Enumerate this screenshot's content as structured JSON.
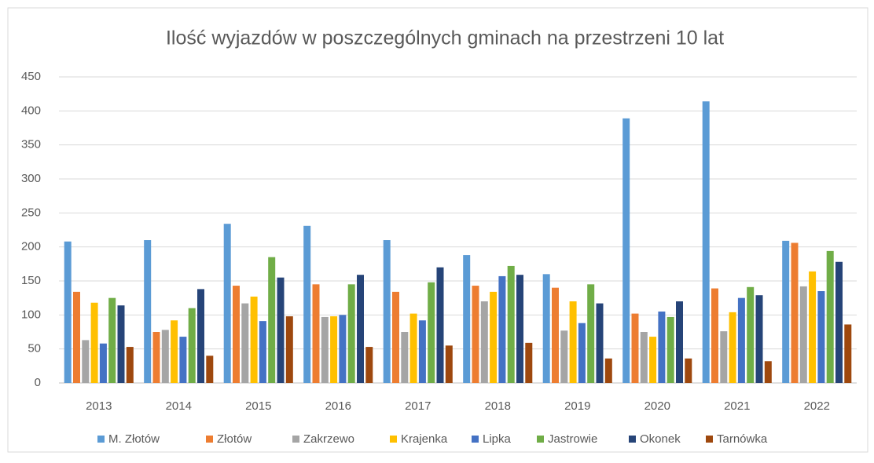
{
  "chart_data": {
    "type": "bar",
    "title": "Ilość wyjazdów w poszczególnych  gminach na przestrzeni 10 lat",
    "categories": [
      "2013",
      "2014",
      "2015",
      "2016",
      "2017",
      "2018",
      "2019",
      "2020",
      "2021",
      "2022"
    ],
    "series": [
      {
        "name": "M. Złotów",
        "color": "#5b9bd5",
        "values": [
          208,
          210,
          234,
          231,
          210,
          188,
          160,
          389,
          414,
          209
        ]
      },
      {
        "name": "Złotów",
        "color": "#ed7d31",
        "values": [
          134,
          75,
          143,
          145,
          134,
          143,
          140,
          102,
          139,
          206
        ]
      },
      {
        "name": "Zakrzewo",
        "color": "#a5a5a5",
        "values": [
          63,
          78,
          117,
          97,
          75,
          120,
          77,
          75,
          76,
          142
        ]
      },
      {
        "name": "Krajenka",
        "color": "#ffc000",
        "values": [
          118,
          92,
          127,
          98,
          102,
          134,
          120,
          68,
          104,
          164
        ]
      },
      {
        "name": "Lipka",
        "color": "#4472c4",
        "values": [
          58,
          68,
          91,
          100,
          92,
          157,
          88,
          105,
          125,
          135
        ]
      },
      {
        "name": "Jastrowie",
        "color": "#70ad47",
        "values": [
          125,
          110,
          185,
          145,
          148,
          172,
          145,
          97,
          141,
          194
        ]
      },
      {
        "name": "Okonek",
        "color": "#264478",
        "values": [
          114,
          138,
          155,
          159,
          170,
          159,
          117,
          120,
          129,
          178
        ]
      },
      {
        "name": "Tarnówka",
        "color": "#9e480e",
        "values": [
          53,
          40,
          98,
          53,
          55,
          59,
          36,
          36,
          32,
          86
        ]
      }
    ],
    "ylim": [
      0,
      450
    ],
    "yticks": [
      0,
      50,
      100,
      150,
      200,
      250,
      300,
      350,
      400,
      450
    ],
    "grid": true,
    "legend": "bottom"
  }
}
